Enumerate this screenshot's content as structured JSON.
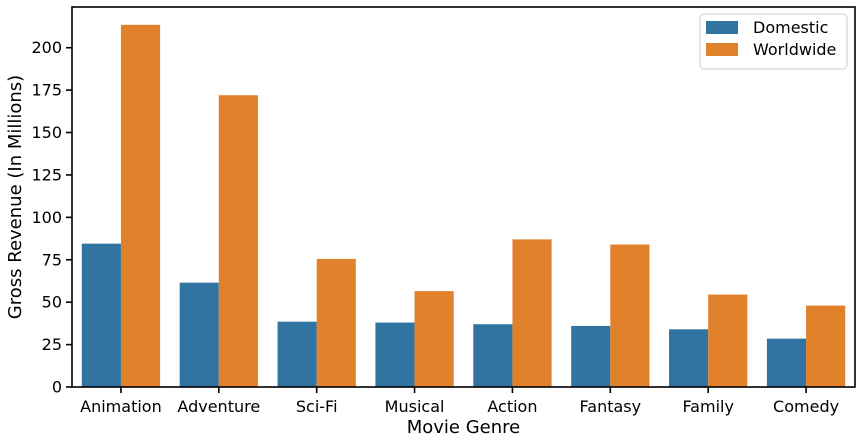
{
  "chart_data": {
    "type": "bar",
    "title": "",
    "xlabel": "Movie Genre",
    "ylabel": "Gross Revenue (In Millions)",
    "categories": [
      "Animation",
      "Adventure",
      "Sci-Fi",
      "Musical",
      "Action",
      "Fantasy",
      "Family",
      "Comedy"
    ],
    "series": [
      {
        "name": "Domestic",
        "color": "#3274a1",
        "values": [
          84.5,
          61.5,
          38.5,
          38,
          37,
          36,
          34,
          28.5
        ]
      },
      {
        "name": "Worldwide",
        "color": "#e1812c",
        "values": [
          213.5,
          172,
          75.5,
          56.5,
          87,
          84,
          54.5,
          48
        ]
      }
    ],
    "ylim": [
      0,
      224
    ],
    "yticks": [
      0,
      25,
      50,
      75,
      100,
      125,
      150,
      175,
      200
    ],
    "grid": false,
    "legend_position": "top-right"
  }
}
